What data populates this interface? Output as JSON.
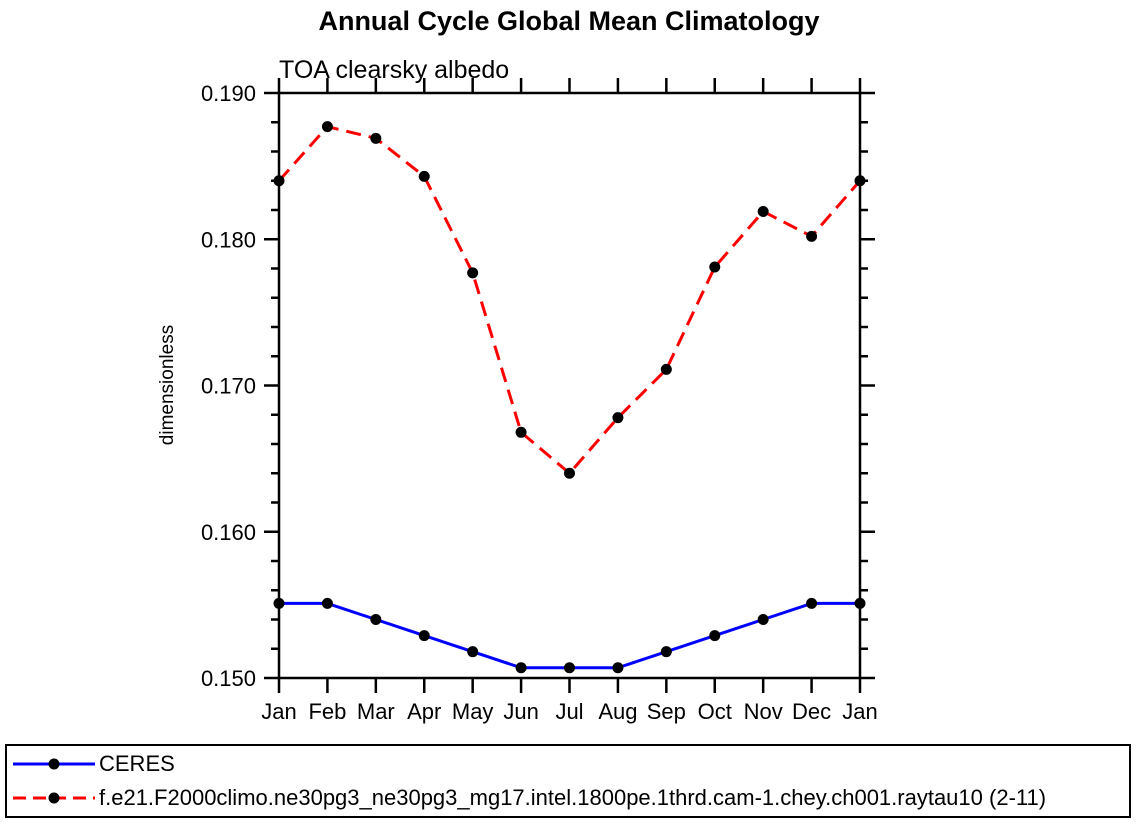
{
  "chart_data": {
    "type": "line",
    "title": "Annual Cycle Global Mean Climatology",
    "subtitle": "TOA clearsky albedo",
    "ylabel": "dimensionless",
    "xlabel": "",
    "ylim": [
      0.15,
      0.19
    ],
    "ytick_labels": [
      "0.150",
      "0.160",
      "0.170",
      "0.180",
      "0.190"
    ],
    "ytick_values": [
      0.15,
      0.16,
      0.17,
      0.18,
      0.19
    ],
    "ytick_minor_step": 0.002,
    "grid": false,
    "legend_position": "bottom",
    "categories": [
      "Jan",
      "Feb",
      "Mar",
      "Apr",
      "May",
      "Jun",
      "Jul",
      "Aug",
      "Sep",
      "Oct",
      "Nov",
      "Dec",
      "Jan"
    ],
    "series": [
      {
        "name": "CERES",
        "color": "#0000ff",
        "style": "solid",
        "marker": "filled-circle",
        "marker_color": "#000000",
        "values": [
          0.1551,
          0.1551,
          0.154,
          0.1529,
          0.1518,
          0.1507,
          0.1507,
          0.1507,
          0.1518,
          0.1529,
          0.154,
          0.1551,
          0.1551
        ]
      },
      {
        "name": "f.e21.F2000climo.ne30pg3_ne30pg3_mg17.intel.1800pe.1thrd.cam-1.chey.ch001.raytau10 (2-11)",
        "color": "#ff0000",
        "style": "dashed",
        "marker": "filled-circle",
        "marker_color": "#000000",
        "values": [
          0.184,
          0.1877,
          0.1869,
          0.1843,
          0.1777,
          0.1668,
          0.164,
          0.1678,
          0.1711,
          0.1781,
          0.1819,
          0.1802,
          0.184
        ]
      }
    ]
  }
}
